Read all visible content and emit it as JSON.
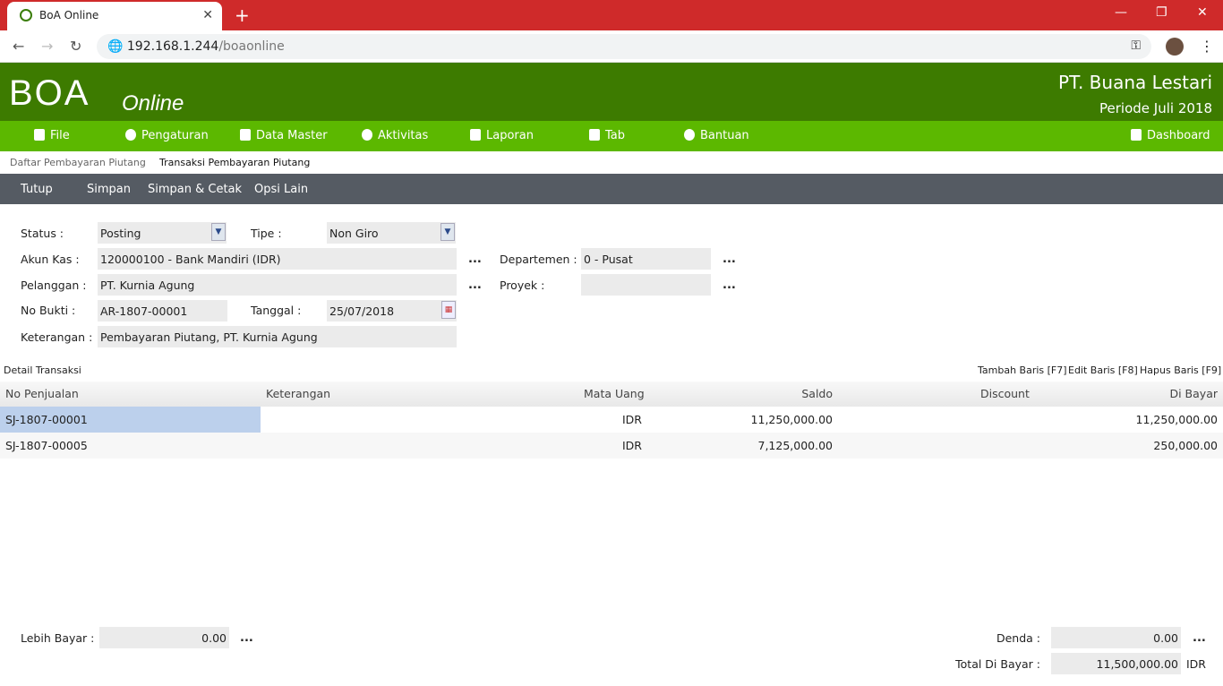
{
  "browser": {
    "tab_title": "BoA Online",
    "url_host": "192.168.1.244",
    "url_path": "/boaonline"
  },
  "header": {
    "logo": "BOA",
    "logo_sub": "Online",
    "company": "PT. Buana Lestari",
    "periode": "Periode Juli 2018"
  },
  "menu": [
    "File",
    "Pengaturan",
    "Data Master",
    "Aktivitas",
    "Laporan",
    "Tab",
    "Bantuan",
    "Dashboard"
  ],
  "breadcrumbs": [
    "Daftar Pembayaran Piutang",
    "Transaksi Pembayaran Piutang"
  ],
  "toolbar": [
    "Tutup",
    "Simpan",
    "Simpan & Cetak",
    "Opsi Lain"
  ],
  "form": {
    "status_label": "Status :",
    "status": "Posting",
    "tipe_label": "Tipe :",
    "tipe": "Non Giro",
    "akun_label": "Akun Kas :",
    "akun": "120000100 - Bank Mandiri (IDR)",
    "dept_label": "Departemen :",
    "dept": "0 - Pusat",
    "pelanggan_label": "Pelanggan :",
    "pelanggan": "PT. Kurnia Agung",
    "proyek_label": "Proyek :",
    "proyek": "",
    "nobukti_label": "No Bukti :",
    "nobukti": "AR-1807-00001",
    "tanggal_label": "Tanggal :",
    "tanggal": "25/07/2018",
    "ket_label": "Keterangan :",
    "ket": "Pembayaran Piutang, PT. Kurnia Agung",
    "dots": "..."
  },
  "detail": {
    "title": "Detail Transaksi",
    "actions": [
      "Tambah Baris [F7]",
      "Edit Baris [F8]",
      "Hapus Baris [F9]"
    ],
    "columns": [
      "No Penjualan",
      "Keterangan",
      "Mata Uang",
      "Saldo",
      "Discount",
      "Di Bayar"
    ],
    "rows": [
      {
        "no": "SJ-1807-00001",
        "ket": "",
        "cur": "IDR",
        "saldo": "11,250,000.00",
        "disc": "",
        "bayar": "11,250,000.00"
      },
      {
        "no": "SJ-1807-00005",
        "ket": "",
        "cur": "IDR",
        "saldo": "7,125,000.00",
        "disc": "",
        "bayar": "250,000.00"
      }
    ]
  },
  "footer": {
    "lebih_label": "Lebih Bayar :",
    "lebih": "0.00",
    "denda_label": "Denda :",
    "denda": "0.00",
    "total_label": "Total Di Bayar :",
    "total": "11,500,000.00",
    "currency": "IDR"
  }
}
